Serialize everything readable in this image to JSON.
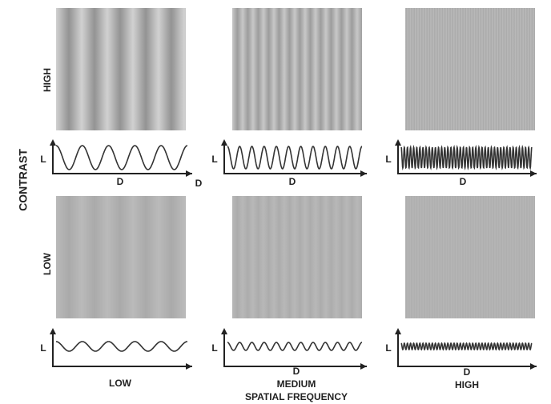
{
  "axis_label": "CONTRAST",
  "x_axis_label": "SPATIAL FREQUENCY",
  "rows": [
    {
      "label": "HIGH"
    },
    {
      "label": "LOW"
    }
  ],
  "columns": [
    {
      "label": "LOW"
    },
    {
      "label": "MEDIUM"
    },
    {
      "label": "HIGH"
    }
  ],
  "plots": [
    {
      "y_label": "L",
      "x_labels": [
        "D",
        "D"
      ]
    },
    {
      "y_label": "L",
      "x_labels": [
        "D"
      ]
    },
    {
      "y_label": "L",
      "x_labels": [
        "D"
      ]
    },
    {
      "y_label": "L",
      "x_labels": []
    },
    {
      "y_label": "L",
      "x_labels": [
        "D"
      ]
    },
    {
      "y_label": "L",
      "x_labels": [
        "D"
      ]
    }
  ]
}
